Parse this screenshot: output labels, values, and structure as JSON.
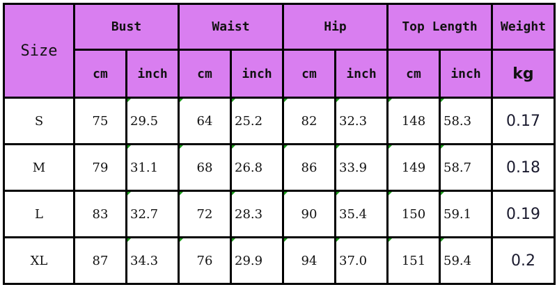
{
  "header": {
    "size": "Size",
    "groups": [
      "Bust",
      "Waist",
      "Hip",
      "Top Length",
      "Weight"
    ],
    "units": [
      "cm",
      "inch",
      "cm",
      "inch",
      "cm",
      "inch",
      "cm",
      "inch",
      "kg"
    ]
  },
  "rows": [
    {
      "size": "S",
      "values": [
        "75",
        "29.5",
        "64",
        "25.2",
        "82",
        "32.3",
        "148",
        "58.3",
        "0.17"
      ]
    },
    {
      "size": "M",
      "values": [
        "79",
        "31.1",
        "68",
        "26.8",
        "86",
        "33.9",
        "149",
        "58.7",
        "0.18"
      ]
    },
    {
      "size": "L",
      "values": [
        "83",
        "32.7",
        "72",
        "28.3",
        "90",
        "35.4",
        "150",
        "59.1",
        "0.19"
      ]
    },
    {
      "size": "XL",
      "values": [
        "87",
        "34.3",
        "76",
        "29.9",
        "94",
        "37.0",
        "151",
        "59.4",
        "0.2"
      ]
    }
  ],
  "colors": {
    "header_bg": "#d97ef0",
    "border": "#000000",
    "corner_mark": "#1a9a1a"
  }
}
